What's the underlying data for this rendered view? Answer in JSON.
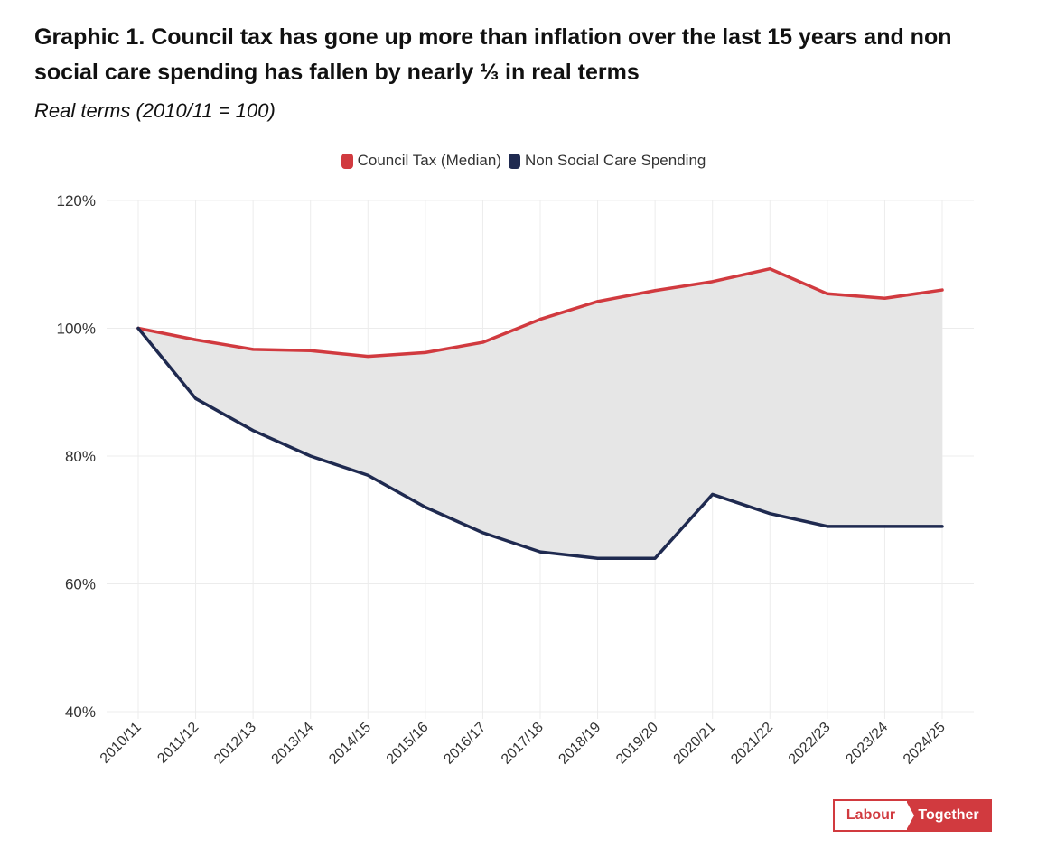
{
  "header": {
    "title": "Graphic 1. Council tax has gone up more than inflation over the last 15 years and non social care spending has fallen by nearly ⅓ in real terms",
    "subtitle": "Real terms (2010/11 = 100)"
  },
  "legend": [
    {
      "label": "Council Tax (Median)",
      "color": "#d13a3f"
    },
    {
      "label": "Non Social Care Spending",
      "color": "#1f2a50"
    }
  ],
  "logo": {
    "left": "Labour",
    "right": "Together"
  },
  "chart_data": {
    "type": "line",
    "title": "Graphic 1. Council tax has gone up more than inflation over the last 15 years and non social care spending has fallen by nearly ⅓ in real terms",
    "subtitle": "Real terms (2010/11 = 100)",
    "categories": [
      "2010/11",
      "2011/12",
      "2012/13",
      "2013/14",
      "2014/15",
      "2015/16",
      "2016/17",
      "2017/18",
      "2018/19",
      "2019/20",
      "2020/21",
      "2021/22",
      "2022/23",
      "2023/24",
      "2024/25"
    ],
    "series": [
      {
        "name": "Council Tax (Median)",
        "color": "#d13a3f",
        "values": [
          100,
          98.2,
          96.7,
          96.5,
          95.6,
          96.2,
          97.8,
          101.4,
          104.2,
          105.9,
          107.3,
          109.3,
          105.4,
          104.7,
          106.0
        ]
      },
      {
        "name": "Non Social Care Spending",
        "color": "#1f2a50",
        "values": [
          100,
          89,
          84,
          80,
          77,
          72,
          68,
          65,
          64,
          64,
          74,
          71,
          69,
          69,
          69
        ]
      }
    ],
    "fill_between": {
      "color": "#e6e6e6"
    },
    "ylim": [
      40,
      120
    ],
    "yticks": [
      40,
      60,
      80,
      100,
      120
    ],
    "ytick_labels": [
      "40%",
      "60%",
      "80%",
      "100%",
      "120%"
    ],
    "xlabel": "",
    "ylabel": "",
    "grid": true,
    "legend_position": "top-center"
  }
}
